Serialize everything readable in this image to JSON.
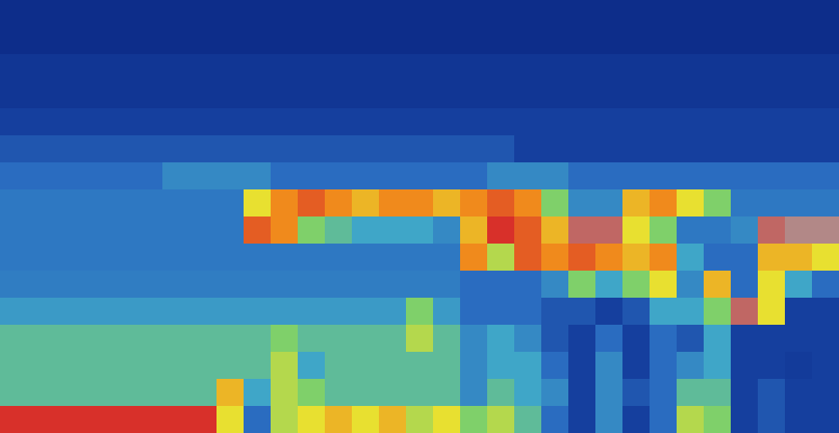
{
  "chart_data": {
    "type": "heatmap",
    "tick_labels": false,
    "zlim": [
      0,
      10
    ],
    "cells": [
      [
        1,
        1,
        1,
        1,
        1,
        1,
        1,
        1,
        1,
        1,
        1,
        1,
        1,
        1,
        1,
        1,
        1,
        1,
        1,
        1,
        1,
        1,
        1,
        1,
        1,
        1,
        1,
        1,
        1,
        1,
        1
      ],
      [
        1,
        1,
        1,
        1,
        1,
        1,
        1,
        1,
        1,
        1,
        1,
        1,
        1,
        1,
        1,
        1,
        1,
        1,
        1,
        1,
        1,
        1,
        1,
        1,
        1,
        1,
        1,
        1,
        1,
        1,
        1
      ],
      [
        1.5,
        1.5,
        1.5,
        1.5,
        1.5,
        1.5,
        1.5,
        1.5,
        1.5,
        1.5,
        1.5,
        1.5,
        1.5,
        1.5,
        1.5,
        1.5,
        1.5,
        1.5,
        1.5,
        1.5,
        1.5,
        1.5,
        1.5,
        1.5,
        1.5,
        1.5,
        1.5,
        1.5,
        1.5,
        1.5,
        1.5
      ],
      [
        1.5,
        1.5,
        1.5,
        1.5,
        1.5,
        1.5,
        1.5,
        1.5,
        1.5,
        1.5,
        1.5,
        1.5,
        1.5,
        1.5,
        1.5,
        1.5,
        1.5,
        1.5,
        1.5,
        1.5,
        1.5,
        1.5,
        1.5,
        1.5,
        1.5,
        1.5,
        1.5,
        1.5,
        1.5,
        1.5,
        1.5
      ],
      [
        2,
        2,
        2,
        2,
        2,
        2,
        2,
        2,
        2,
        2,
        2,
        2,
        2,
        2,
        2,
        2,
        2,
        2,
        2,
        2,
        2,
        2,
        2,
        2,
        2,
        2,
        2,
        2,
        2,
        2,
        2
      ],
      [
        2.5,
        2.5,
        2.5,
        2.5,
        2.5,
        2.5,
        2.5,
        2.5,
        2.5,
        2.5,
        2.5,
        2.5,
        2.5,
        2.5,
        2.5,
        2.5,
        2.5,
        2.5,
        2.5,
        2,
        2,
        2,
        2,
        2,
        2,
        2,
        2,
        2,
        2,
        2,
        2
      ],
      [
        3,
        3,
        3,
        3,
        3,
        3,
        3.5,
        3.5,
        3.5,
        3.5,
        3,
        3,
        3,
        3,
        3,
        3,
        3,
        3,
        3.5,
        3.5,
        3.5,
        3,
        3,
        3,
        3,
        3,
        3,
        3,
        3,
        3,
        3
      ],
      [
        3.2,
        3.2,
        3.2,
        3.2,
        3.2,
        3.2,
        3.2,
        3.2,
        3.2,
        6,
        7,
        7.5,
        7,
        6.5,
        7,
        7,
        6.5,
        7,
        7.5,
        7,
        5,
        3.5,
        3.5,
        6.5,
        7,
        6,
        5,
        3.2,
        3.2,
        3.2,
        3.2
      ],
      [
        3.2,
        3.2,
        3.2,
        3.2,
        3.2,
        3.2,
        3.2,
        3.2,
        3.2,
        7.5,
        7,
        5,
        4.5,
        4,
        4,
        4,
        3.5,
        6.5,
        8,
        7.5,
        6.5,
        8.5,
        8.5,
        6,
        5,
        3.2,
        3.2,
        3.5,
        8.5,
        8.8,
        8.8
      ],
      [
        3.2,
        3.2,
        3.2,
        3.2,
        3.2,
        3.2,
        3.2,
        3.2,
        3.2,
        3.2,
        3.2,
        3.2,
        3.2,
        3.2,
        3.2,
        3.2,
        3.2,
        7,
        5.5,
        7.5,
        7,
        7.5,
        7,
        6.5,
        7,
        4,
        3,
        3,
        6.5,
        6.5,
        6
      ],
      [
        3.3,
        3.3,
        3.3,
        3.3,
        3.3,
        3.3,
        3.3,
        3.3,
        3.3,
        3.3,
        3.3,
        3.3,
        3.3,
        3.3,
        3.3,
        3.3,
        3.3,
        3,
        3,
        3,
        3.5,
        5,
        4,
        5,
        6,
        3.5,
        6.5,
        3,
        6,
        4,
        3
      ],
      [
        3.8,
        3.8,
        3.8,
        3.8,
        3.8,
        3.8,
        3.8,
        3.8,
        3.8,
        3.8,
        3.8,
        3.8,
        3.8,
        3.8,
        3.8,
        5,
        3.8,
        3,
        3,
        3,
        2.5,
        2.5,
        2,
        2.5,
        4,
        4,
        5,
        8.5,
        6,
        2,
        2
      ],
      [
        4.5,
        4.5,
        4.5,
        4.5,
        4.5,
        4.5,
        4.5,
        4.5,
        4.5,
        4.5,
        5,
        4.5,
        4.5,
        4.5,
        4.5,
        5.5,
        4.5,
        3.5,
        4,
        3.5,
        2.5,
        2,
        3,
        2,
        3,
        2.5,
        4,
        2,
        2,
        2,
        2
      ],
      [
        4.5,
        4.5,
        4.5,
        4.5,
        4.5,
        4.5,
        4.5,
        4.5,
        4.5,
        4.5,
        5.5,
        4,
        4.5,
        4.5,
        4.5,
        4.5,
        4.5,
        3.5,
        4,
        4,
        3,
        2,
        3.5,
        2,
        3,
        3.5,
        4,
        2,
        2,
        1.8,
        2
      ],
      [
        4.5,
        4.5,
        4.5,
        4.5,
        4.5,
        4.5,
        4.5,
        4.5,
        6.5,
        4,
        5.5,
        5,
        4.5,
        4.5,
        4.5,
        4.5,
        4.5,
        3.5,
        4.5,
        4,
        3.5,
        2,
        3.5,
        2.5,
        3,
        4.5,
        4.5,
        2,
        2.5,
        2,
        2
      ],
      [
        8,
        8,
        8,
        8,
        8,
        8,
        8,
        8,
        6,
        3,
        5.5,
        6,
        6.5,
        6,
        6.5,
        5.5,
        6,
        5,
        5.5,
        4.5,
        3,
        2,
        3.5,
        2,
        3,
        5.5,
        5,
        2,
        2.5,
        2,
        2
      ]
    ]
  }
}
